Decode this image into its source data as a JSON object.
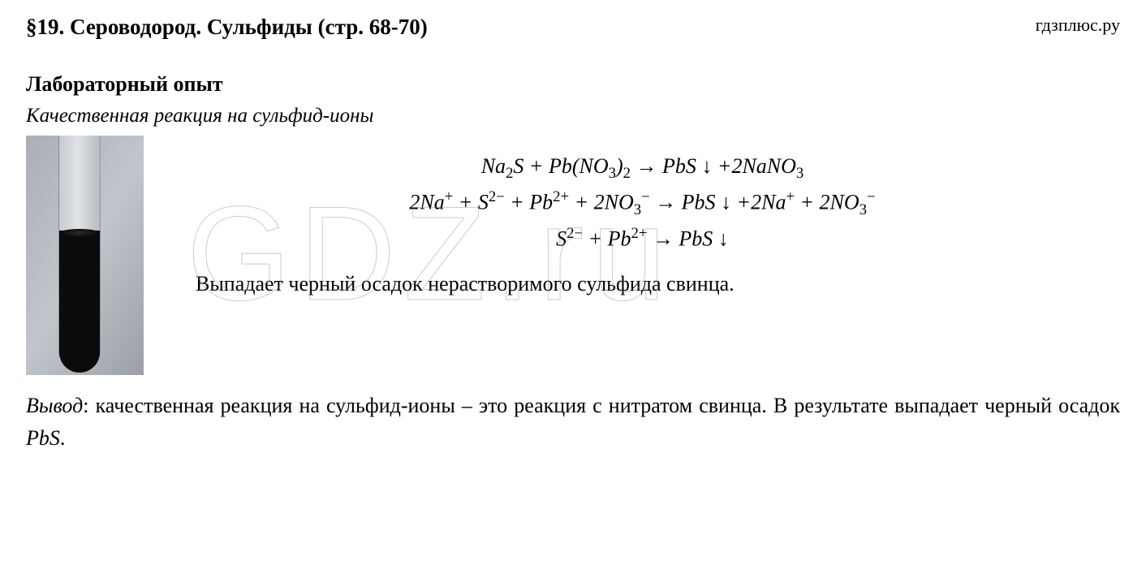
{
  "header": {
    "section_title": "§19. Сероводород. Сульфиды (стр. 68-70)",
    "site": "гдзплюс.ру"
  },
  "lab": {
    "heading": "Лабораторный опыт",
    "reaction_title": "Качественная реакция на сульфид-ионы"
  },
  "test_tube": {
    "liquid_color": "#0b0b0c",
    "glass_gradient": [
      "#c6cbd0",
      "#dfe3e6",
      "#b7bcc1"
    ],
    "background_gradient": [
      "#a9afb5",
      "#c0c6cc",
      "#9aa0a6"
    ]
  },
  "equations": {
    "line1_html": "Na<sub>2</sub>S + Pb(NO<sub>3</sub>)<sub>2</sub> → PbS ↓ +2NaNO<sub>3</sub>",
    "line2_html": "2Na<sup>+</sup> + S<sup>2−</sup> + Pb<sup>2+</sup> + 2NO<sub>3</sub><sup>−</sup> → PbS ↓ +2Na<sup>+</sup> + 2NO<sub>3</sub><sup>−</sup>",
    "line3_html": "S<sup>2−</sup> + Pb<sup>2+</sup> → PbS ↓"
  },
  "result_text": "Выпадает черный осадок нерастворимого сульфида свинца.",
  "conclusion": {
    "label": "Вывод",
    "text_part1": ": качественная реакция на сульфид-ионы – это реакция с нитратом свинца. В результате выпадает черный осадок ",
    "formula": "PbS",
    "text_part2": "."
  },
  "watermark": "GDZ.ru"
}
